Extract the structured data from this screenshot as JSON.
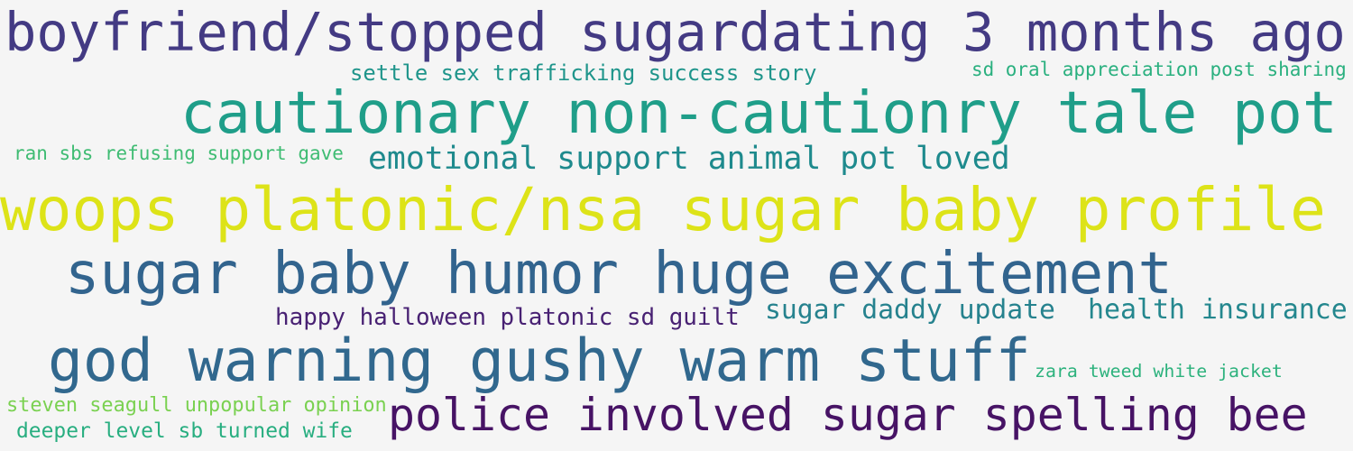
{
  "phrases": [
    {
      "text": "boyfriend/stopped sugardating 3 months ago",
      "color": "#433a83"
    },
    {
      "text": "settle sex trafficking success story",
      "color": "#1f958b"
    },
    {
      "text": "sd oral appreciation post sharing",
      "color": "#2ab07f"
    },
    {
      "text": "cautionary non-cautionry tale pot",
      "color": "#1f9e89"
    },
    {
      "text": "ran sbs refusing support gave",
      "color": "#3fbc73"
    },
    {
      "text": "emotional support animal pot loved",
      "color": "#1e8a8d"
    },
    {
      "text": "woops platonic/nsa sugar baby profile",
      "color": "#dde318"
    },
    {
      "text": "sugar baby humor huge excitement",
      "color": "#32648e"
    },
    {
      "text": "happy halloween platonic sd guilt",
      "color": "#482173"
    },
    {
      "text": "sugar daddy update",
      "color": "#26828e"
    },
    {
      "text": "health insurance",
      "color": "#24878e"
    },
    {
      "text": "god warning gushy warm stuff",
      "color": "#31688e"
    },
    {
      "text": "zara tweed white jacket",
      "color": "#2db27d"
    },
    {
      "text": "steven seagull unpopular opinion",
      "color": "#7ad151"
    },
    {
      "text": "deeper level sb turned wife",
      "color": "#28ae80"
    },
    {
      "text": "police involved sugar spelling bee",
      "color": "#471365"
    }
  ]
}
